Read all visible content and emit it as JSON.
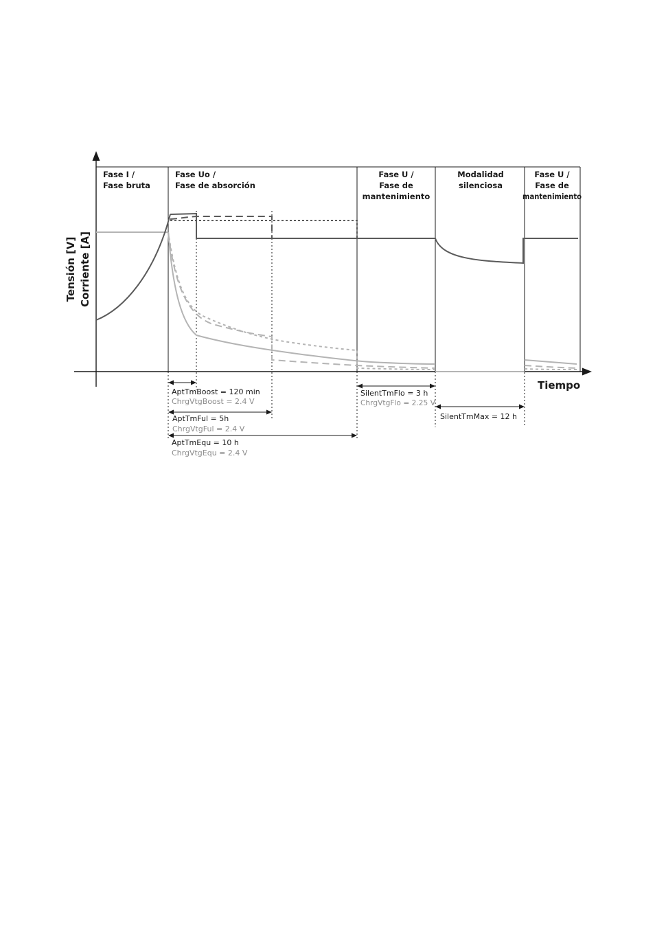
{
  "diagram": {
    "axes": {
      "y_label_1": "Tensión [V]",
      "y_label_2": "Corriente [A]",
      "x_label": "Tiempo"
    },
    "phases": [
      {
        "lines": [
          "Fase I /",
          "Fase bruta"
        ]
      },
      {
        "lines": [
          "Fase Uo /",
          "Fase de absorción"
        ]
      },
      {
        "lines": [
          "Fase U /",
          "Fase de",
          "mantenimiento"
        ]
      },
      {
        "lines": [
          "Modalidad",
          "silenciosa"
        ]
      },
      {
        "lines": [
          "Fase U /",
          "Fase de",
          "mantenimiento"
        ]
      }
    ],
    "annotations": {
      "boost_time": "AptTmBoost = 120 min",
      "boost_voltage": "ChrgVtgBoost = 2.4 V",
      "full_time": "AptTmFul = 5h",
      "full_voltage": "ChrgVtgFul = 2.4 V",
      "equ_time": "AptTmEqu = 10 h",
      "equ_voltage": "ChrgVtgEqu = 2.4 V",
      "flo_time": "SilentTmFlo = 3 h",
      "flo_voltage": "ChrgVtgFlo = 2.25 V",
      "silent_max": "SilentTmMax = 12 h"
    },
    "colors": {
      "voltage": "#5a5a5a",
      "current": "#b4b4b4",
      "frame": "#1a1a1a"
    }
  }
}
